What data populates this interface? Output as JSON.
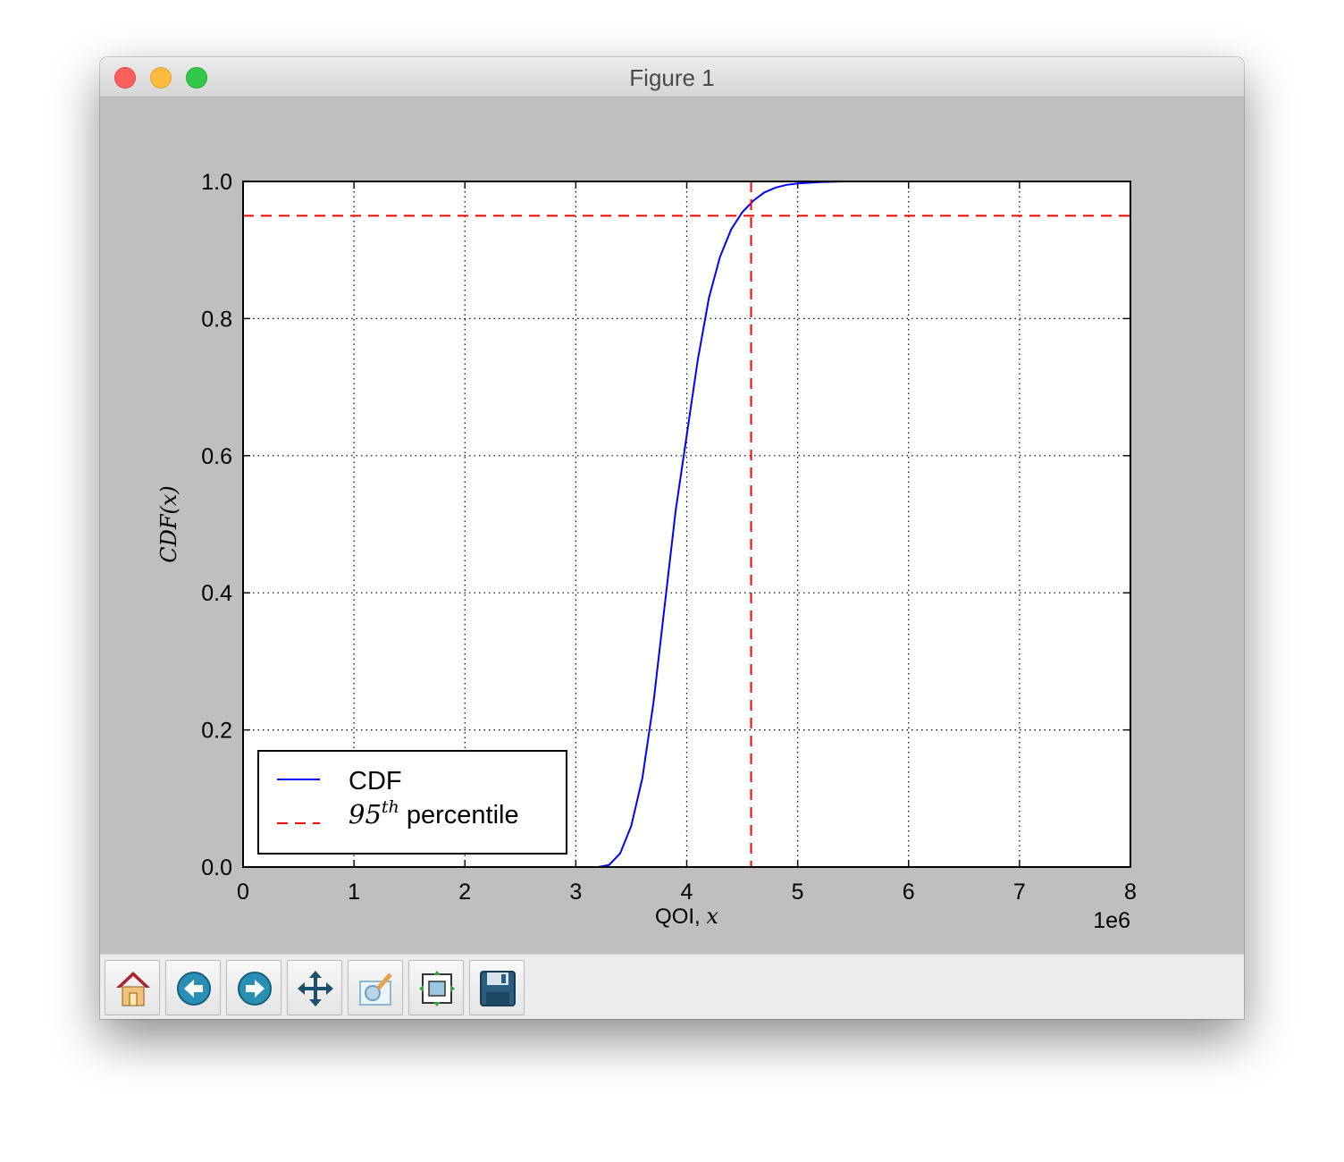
{
  "window": {
    "title": "Figure 1"
  },
  "colors": {
    "cdf_line": "#0000ff",
    "percentile_line": "#ff0000",
    "figure_bg": "#bfbfbf"
  },
  "chart_data": {
    "type": "line",
    "title": "",
    "xlabel_text": "QOI, ",
    "xlabel_math": "x",
    "ylabel": "CDF(x)",
    "x_offset_label": "1e6",
    "xlim": [
      0,
      8
    ],
    "ylim": [
      0,
      1.0
    ],
    "x_units_scale": 1000000,
    "xticks": [
      "0",
      "1",
      "2",
      "3",
      "4",
      "5",
      "6",
      "7",
      "8"
    ],
    "yticks": [
      "0.0",
      "0.2",
      "0.4",
      "0.6",
      "0.8",
      "1.0"
    ],
    "grid": true,
    "legend_position": "lower-left",
    "series": [
      {
        "name": "CDF",
        "style": "solid",
        "x": [
          3.2,
          3.3,
          3.4,
          3.5,
          3.6,
          3.7,
          3.8,
          3.9,
          4.0,
          4.1,
          4.2,
          4.3,
          4.4,
          4.5,
          4.6,
          4.7,
          4.8,
          4.9,
          5.0,
          5.2,
          5.4,
          6.0,
          7.0,
          7.85
        ],
        "y": [
          0.0,
          0.003,
          0.02,
          0.06,
          0.13,
          0.24,
          0.38,
          0.52,
          0.63,
          0.74,
          0.83,
          0.89,
          0.93,
          0.955,
          0.972,
          0.984,
          0.991,
          0.995,
          0.997,
          0.999,
          1.0,
          1.0,
          1.0,
          1.0
        ]
      },
      {
        "name_base": "95",
        "name_superscript": "th",
        "name_suffix": " percentile",
        "style": "dashed",
        "x_value": 4.58,
        "y_value": 0.95
      }
    ]
  },
  "toolbar": {
    "buttons": [
      {
        "name": "home-button",
        "icon": "home-icon"
      },
      {
        "name": "back-button",
        "icon": "back-arrow-icon"
      },
      {
        "name": "forward-button",
        "icon": "forward-arrow-icon"
      },
      {
        "name": "pan-button",
        "icon": "move-arrows-icon"
      },
      {
        "name": "zoom-button",
        "icon": "zoom-rect-icon"
      },
      {
        "name": "configure-subplots-button",
        "icon": "subplots-icon"
      },
      {
        "name": "save-button",
        "icon": "floppy-disk-icon"
      }
    ]
  }
}
